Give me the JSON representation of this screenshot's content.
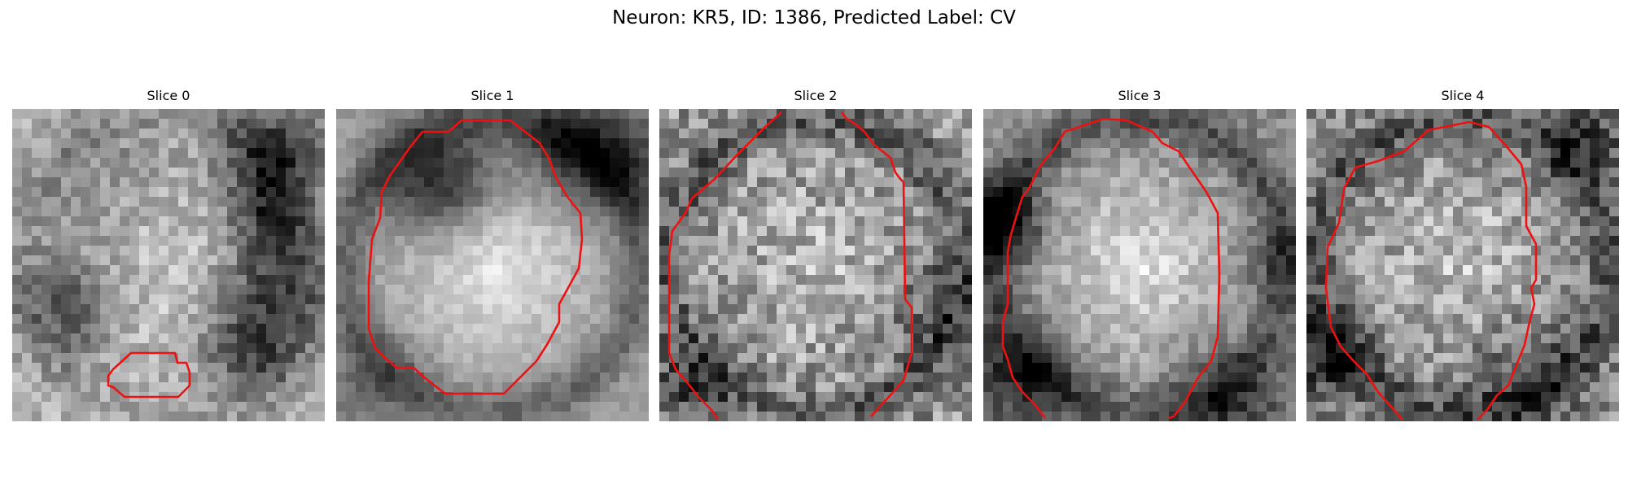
{
  "figure": {
    "title": "Neuron: KR5, ID: 1386, Predicted Label: CV"
  },
  "colors": {
    "contour": "#ee1111",
    "background": "#ffffff"
  },
  "panels": [
    {
      "title": "Slice 0",
      "seed": 11,
      "brightness": {
        "base": 0.72,
        "center_boost": 0.1,
        "noise": 0.14
      }
    },
    {
      "title": "Slice 1",
      "seed": 23,
      "brightness": {
        "base": 0.62,
        "center_boost": 0.3,
        "noise": 0.07
      }
    },
    {
      "title": "Slice 2",
      "seed": 37,
      "brightness": {
        "base": 0.58,
        "center_boost": 0.16,
        "noise": 0.22
      }
    },
    {
      "title": "Slice 3",
      "seed": 41,
      "brightness": {
        "base": 0.55,
        "center_boost": 0.34,
        "noise": 0.12
      }
    },
    {
      "title": "Slice 4",
      "seed": 53,
      "brightness": {
        "base": 0.55,
        "center_boost": 0.22,
        "noise": 0.2
      }
    }
  ]
}
